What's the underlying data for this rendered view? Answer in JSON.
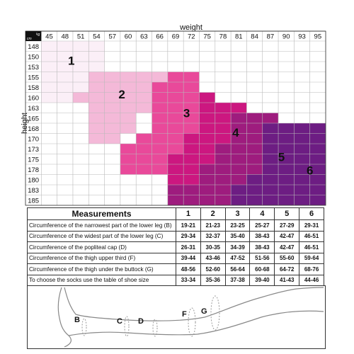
{
  "chart": {
    "weight_label": "weight",
    "height_label": "height",
    "unit_kg": "kg",
    "unit_cm": "cm",
    "weights": [
      "42",
      "45",
      "48",
      "51",
      "54",
      "57",
      "60",
      "63",
      "66",
      "69",
      "72",
      "75",
      "78",
      "81",
      "84",
      "87",
      "90",
      "93",
      "95"
    ],
    "heights": [
      "148",
      "150",
      "153",
      "155",
      "158",
      "160",
      "163",
      "165",
      "168",
      "170",
      "173",
      "175",
      "178",
      "180",
      "183",
      "185"
    ],
    "sizes": [
      {
        "label": "1",
        "color": "#fbeff7"
      },
      {
        "label": "2",
        "color": "#f4b9d8"
      },
      {
        "label": "3",
        "color": "#e9499a"
      },
      {
        "label": "4",
        "color": "#cc1780"
      },
      {
        "label": "5",
        "color": "#9e1c7e"
      },
      {
        "label": "6",
        "color": "#6d1d83"
      }
    ]
  },
  "table": {
    "title": "Measurements",
    "size_headers": [
      "1",
      "2",
      "3",
      "4",
      "5",
      "6"
    ],
    "rows": [
      {
        "label": "Circumference of the narrowest part of the lower leg (B)",
        "values": [
          "19-21",
          "21-23",
          "23-25",
          "25-27",
          "27-29",
          "29-31"
        ]
      },
      {
        "label": "Circumference of the widest part of the lower leg (C)",
        "values": [
          "29-34",
          "32-37",
          "35-40",
          "38-43",
          "42-47",
          "46-51"
        ]
      },
      {
        "label": "Circumference of the popliteal cap (D)",
        "values": [
          "26-31",
          "30-35",
          "34-39",
          "38-43",
          "42-47",
          "46-51"
        ]
      },
      {
        "label": "Circumference of the thigh upper third (F)",
        "values": [
          "39-44",
          "43-46",
          "47-52",
          "51-56",
          "55-60",
          "59-64"
        ]
      },
      {
        "label": "Circumference of the thigh under the buttock (G)",
        "values": [
          "48-56",
          "52-60",
          "56-64",
          "60-68",
          "64-72",
          "68-76"
        ]
      },
      {
        "label": "To choose the socks use the table of shoe size",
        "values": [
          "33-34",
          "35-36",
          "37-38",
          "39-40",
          "41-43",
          "44-46"
        ]
      }
    ]
  },
  "leg": {
    "labels": [
      "B",
      "C",
      "D",
      "F",
      "G"
    ]
  }
}
